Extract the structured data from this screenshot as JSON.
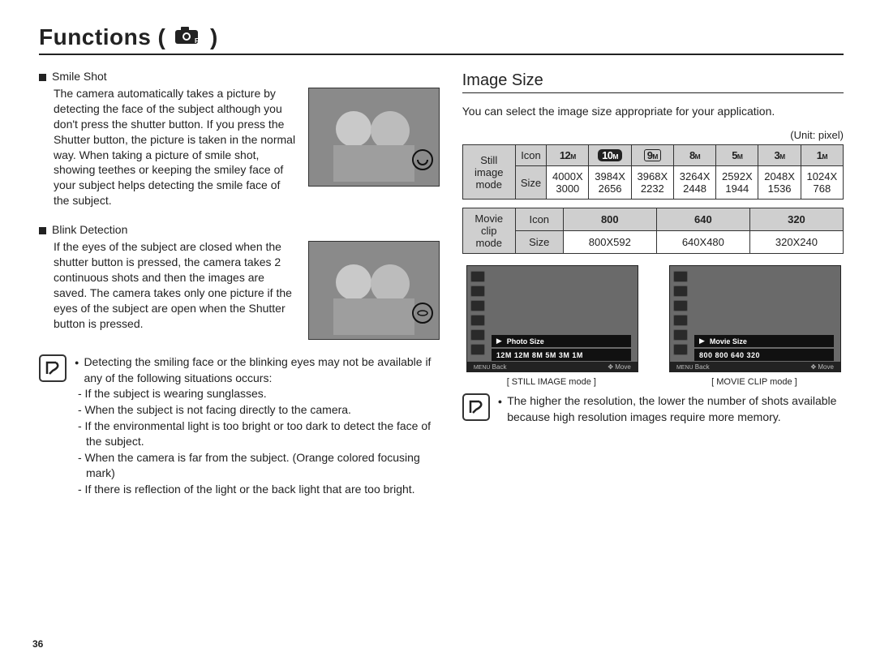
{
  "title_prefix": "Functions (",
  "title_suffix": ")",
  "page_number": "36",
  "smile": {
    "heading": "Smile Shot",
    "body": "The camera automatically takes a picture by detecting the face of the subject although you don't press the shutter button. If you press the Shutter button, the picture is taken in the normal way. When taking a picture of smile shot, showing teethes or keeping the smiley face of your subject helps detecting the smile face of the subject."
  },
  "blink": {
    "heading": "Blink Detection",
    "body": "If the eyes of the subject are closed when the shutter button is pressed, the camera takes 2 continuous shots and then the images are saved. The camera takes only one picture if the eyes of the subject are open when the Shutter button is pressed."
  },
  "note_left": {
    "lead": "Detecting the smiling face or the blinking eyes may not be available if any of the following situations occurs:",
    "items": [
      "- If the subject is wearing sunglasses.",
      "- When the subject is not facing directly to the camera.",
      "- If the environmental light is too bright or too dark to detect the face of the subject.",
      "- When the camera is far from the subject. (Orange colored focusing mark)",
      "- If there is reflection of the light or the back light that are too bright."
    ]
  },
  "image_size": {
    "heading": "Image Size",
    "intro": "You can select the image size appropriate for your application.",
    "unit": "(Unit: pixel)",
    "still": {
      "row_label": "Still image mode",
      "icon_label": "Icon",
      "size_label": "Size",
      "icons": [
        "12M",
        "10M",
        "9M",
        "8M",
        "5M",
        "3M",
        "1M"
      ],
      "sizes": [
        "4000X 3000",
        "3984X 2656",
        "3968X 2232",
        "3264X 2448",
        "2592X 1944",
        "2048X 1536",
        "1024X 768"
      ]
    },
    "movie": {
      "row_label": "Movie clip mode",
      "icon_label": "Icon",
      "size_label": "Size",
      "icons": [
        "800",
        "640",
        "320"
      ],
      "sizes": [
        "800X592",
        "640X480",
        "320X240"
      ]
    }
  },
  "preview_still": {
    "label_top": "Photo Size",
    "label_sizes": "12M 12M   8M 5M 3M 1M",
    "bottom_left": "Back",
    "bottom_right": "Move",
    "caption": "[ STILL IMAGE mode ]"
  },
  "preview_movie": {
    "label_top": "Movie Size",
    "label_sizes": "800 800 640 320",
    "bottom_left": "Back",
    "bottom_right": "Move",
    "caption": "[ MOVIE CLIP mode ]"
  },
  "note_right": {
    "text": "The higher the resolution, the lower the number of shots available because high resolution images require more memory."
  }
}
